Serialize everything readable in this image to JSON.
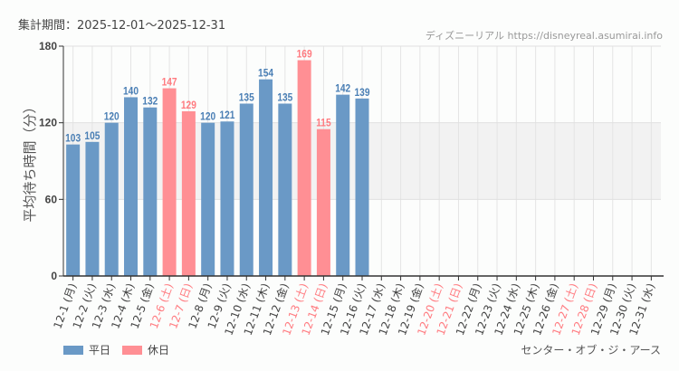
{
  "header": {
    "period": "集計期間：2025-12-01～2025-12-31",
    "credit": "ディズニーリアル https://disneyreal.asumirai.info"
  },
  "legend": {
    "weekday": "平日",
    "holiday": "休日"
  },
  "attraction": "センター・オブ・ジ・アース",
  "colors": {
    "weekday": "#6a99c6",
    "holiday": "#ff8f94",
    "weekday_label": "#4a7fb5",
    "holiday_label": "#ff7b80"
  },
  "chart_data": {
    "type": "bar",
    "ylabel": "平均待ち時間（分）",
    "ylim": [
      0,
      180
    ],
    "yticks": [
      0,
      60,
      120,
      180
    ],
    "shaded_band": [
      60,
      120
    ],
    "grid": true,
    "legend_position": "bottom-left",
    "categories": [
      "12-1 (月)",
      "12-2 (火)",
      "12-3 (水)",
      "12-4 (木)",
      "12-5 (金)",
      "12-6 (土)",
      "12-7 (日)",
      "12-8 (月)",
      "12-9 (火)",
      "12-10 (水)",
      "12-11 (木)",
      "12-12 (金)",
      "12-13 (土)",
      "12-14 (日)",
      "12-15 (月)",
      "12-16 (火)",
      "12-17 (水)",
      "12-18 (木)",
      "12-19 (金)",
      "12-20 (土)",
      "12-21 (日)",
      "12-22 (月)",
      "12-23 (火)",
      "12-24 (水)",
      "12-25 (木)",
      "12-26 (金)",
      "12-27 (土)",
      "12-28 (日)",
      "12-29 (月)",
      "12-30 (火)",
      "12-31 (水)"
    ],
    "holiday": [
      false,
      false,
      false,
      false,
      false,
      true,
      true,
      false,
      false,
      false,
      false,
      false,
      true,
      true,
      false,
      false,
      false,
      false,
      false,
      true,
      true,
      false,
      false,
      false,
      false,
      false,
      true,
      true,
      false,
      false,
      false
    ],
    "values": [
      103,
      105,
      120,
      140,
      132,
      147,
      129,
      120,
      121,
      135,
      154,
      135,
      169,
      115,
      142,
      139,
      null,
      null,
      null,
      null,
      null,
      null,
      null,
      null,
      null,
      null,
      null,
      null,
      null,
      null,
      null
    ]
  }
}
